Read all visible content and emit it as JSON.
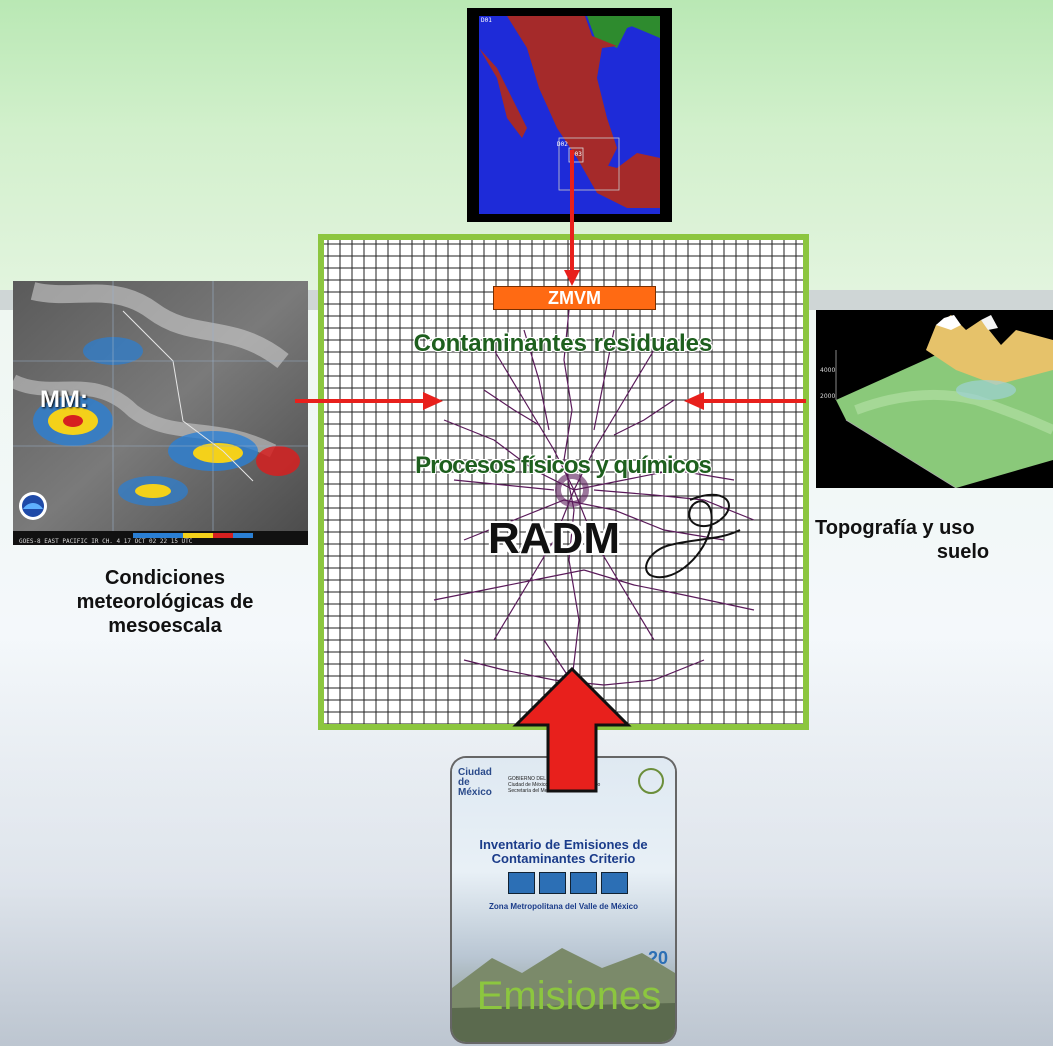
{
  "diagram": {
    "center_box_label": "ZMVM",
    "residual_text": "Contaminantes residuales",
    "process_text": "Procesos físicos y químicos",
    "model_name": "RADM",
    "model_script_glyph": "ƃ"
  },
  "inputs": {
    "meteo": {
      "overlay_label": "MM:",
      "caption_line1": "Condiciones",
      "caption_line2": "meteorológicas de",
      "caption_line3": "mesoescala",
      "footer_text": "GOES-8 EAST PACIFIC IR CH. 4 17 OCT 02 22 15 UTC"
    },
    "topo": {
      "caption_line1": "Topografía y uso",
      "caption_line2": "suelo"
    },
    "map": {
      "tag1": "D01",
      "tag2": "D02",
      "tag3": "D03"
    },
    "emissions": {
      "label": "Emisiones",
      "doc_title": "Inventario de Emisiones de Contaminantes Criterio",
      "doc_subtitle": "Zona Metropolitana del Valle de México",
      "doc_logo": "Ciudad de México",
      "doc_header1": "GOBIERNO DEL DISTRITO FEDERAL",
      "doc_header2": "Ciudad de México, Capital en movimiento",
      "doc_header3": "Secretaría del Medio Ambiente",
      "doc_year": "20"
    }
  },
  "colors": {
    "frame": "#8cc63f",
    "arrow_red": "#e8201c",
    "zmvm_orange": "#ff6a13",
    "text_green": "#1e5f1e",
    "emissions_green": "#8cc63f"
  }
}
